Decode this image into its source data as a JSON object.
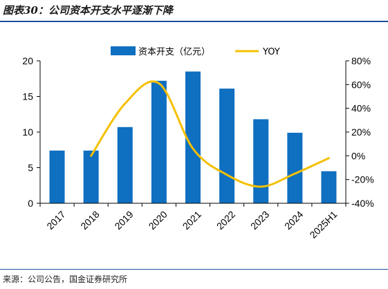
{
  "header": {
    "title": "图表30：公司资本开支水平逐渐下降"
  },
  "footer": {
    "source": "来源：公司公告，国金证券研究所"
  },
  "colors": {
    "bar": "#0f6fc0",
    "line": "#f5c000",
    "rule": "#1d4f9c"
  },
  "chart_data": {
    "type": "bar",
    "categories": [
      "2017",
      "2018",
      "2019",
      "2020",
      "2021",
      "2022",
      "2023",
      "2024",
      "2025H1"
    ],
    "series": [
      {
        "name": "资本开支（亿元）",
        "type": "bar",
        "axis": "left",
        "values": [
          7.4,
          7.4,
          10.7,
          17.2,
          18.5,
          16.1,
          11.8,
          9.9,
          4.5
        ]
      },
      {
        "name": "YOY",
        "type": "line",
        "axis": "right",
        "values": [
          null,
          0,
          44,
          61,
          6,
          -16,
          -26,
          -15,
          -2
        ]
      }
    ],
    "y_left": {
      "min": 0,
      "max": 20,
      "ticks": [
        "0",
        "5",
        "10",
        "15",
        "20"
      ]
    },
    "y_right": {
      "min": -40,
      "max": 80,
      "ticks": [
        "-40%",
        "-20%",
        "0%",
        "20%",
        "40%",
        "60%",
        "80%"
      ]
    },
    "grid": false,
    "legend": "top-center"
  }
}
